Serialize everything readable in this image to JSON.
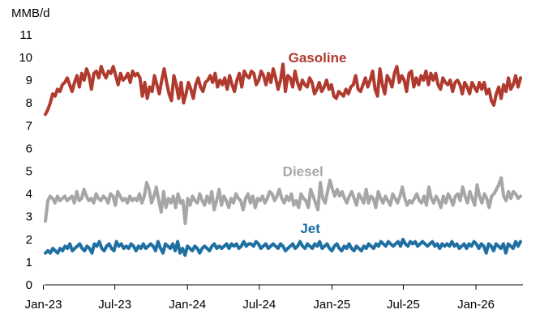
{
  "chart_data": {
    "type": "line",
    "title": "",
    "ylabel": "MMB/d",
    "xlabel": "",
    "ylim": [
      0,
      11
    ],
    "yticks": [
      "0",
      "1",
      "2",
      "3",
      "4",
      "5",
      "6",
      "7",
      "8",
      "9",
      "10",
      "11"
    ],
    "xticks": [
      "Jan-23",
      "Jul-23",
      "Jan-24",
      "Jul-24",
      "Jan-25",
      "Jul-25",
      "Jan-26"
    ],
    "x_range": [
      "2023-01-06",
      "2026-04-24"
    ],
    "x_frequency": "weekly",
    "grid": false,
    "legend": "none (series names written on the chart)",
    "series": [
      {
        "name": "Gasoline",
        "color": "#b03a2e",
        "values": [
          7.5,
          7.7,
          8.0,
          8.4,
          8.3,
          8.6,
          8.5,
          8.8,
          8.9,
          9.1,
          8.8,
          8.5,
          8.9,
          9.2,
          8.7,
          9.3,
          9.0,
          9.5,
          9.2,
          8.6,
          9.3,
          9.4,
          9.1,
          9.6,
          9.3,
          9.1,
          9.4,
          9.3,
          9.6,
          9.2,
          8.8,
          9.3,
          9.0,
          9.1,
          9.3,
          8.9,
          9.4,
          9.2,
          9.3,
          9.1,
          8.3,
          8.9,
          8.2,
          8.7,
          8.5,
          9.2,
          8.8,
          8.4,
          9.0,
          9.5,
          8.9,
          8.4,
          8.1,
          9.2,
          8.8,
          8.2,
          8.9,
          8.0,
          8.4,
          8.9,
          8.6,
          8.2,
          8.8,
          9.1,
          8.7,
          8.5,
          8.9,
          9.0,
          9.2,
          8.9,
          9.3,
          8.7,
          9.0,
          8.8,
          9.1,
          8.6,
          9.2,
          8.8,
          8.5,
          9.0,
          9.3,
          8.7,
          9.4,
          9.2,
          9.1,
          9.4,
          9.3,
          8.8,
          9.0,
          9.4,
          9.2,
          8.8,
          9.3,
          8.9,
          9.5,
          9.1,
          8.6,
          9.0,
          9.7,
          8.5,
          9.2,
          9.1,
          8.7,
          9.4,
          8.9,
          8.6,
          9.0,
          8.8,
          8.7,
          9.1,
          8.9,
          8.4,
          8.6,
          8.9,
          8.5,
          8.7,
          9.0,
          8.6,
          8.8,
          8.3,
          8.2,
          8.5,
          8.4,
          8.3,
          8.6,
          8.4,
          8.7,
          8.8,
          9.2,
          8.6,
          8.5,
          8.8,
          9.1,
          8.7,
          9.0,
          9.4,
          8.6,
          8.3,
          9.5,
          8.8,
          8.4,
          9.2,
          9.0,
          8.7,
          9.3,
          9.6,
          8.9,
          9.2,
          9.0,
          8.5,
          9.3,
          9.4,
          8.7,
          9.1,
          8.8,
          9.2,
          9.0,
          9.4,
          8.8,
          9.3,
          9.0,
          9.3,
          8.8,
          8.6,
          9.1,
          8.9,
          8.8,
          9.0,
          8.5,
          8.9,
          9.0,
          8.8,
          8.4,
          8.9,
          8.7,
          8.4,
          8.9,
          8.7,
          8.5,
          8.9,
          8.6,
          8.9,
          8.4,
          8.6,
          8.1,
          7.9,
          8.4,
          8.7,
          8.2,
          8.8,
          8.5,
          9.1,
          8.6,
          8.8,
          9.2,
          8.7,
          9.1
        ],
        "label_value_position": [
          2024.9,
          10.0
        ]
      },
      {
        "name": "Diesel",
        "color": "#a6a6a6",
        "values": [
          2.8,
          3.7,
          3.9,
          3.8,
          3.6,
          3.9,
          3.7,
          3.8,
          3.9,
          3.7,
          3.8,
          3.9,
          3.6,
          4.1,
          3.7,
          3.8,
          4.2,
          3.9,
          3.7,
          3.8,
          3.6,
          4.0,
          3.8,
          3.7,
          3.9,
          3.8,
          3.6,
          4.0,
          3.9,
          3.5,
          4.1,
          3.9,
          3.7,
          3.8,
          3.6,
          3.9,
          3.7,
          3.8,
          3.7,
          4.0,
          3.6,
          3.9,
          4.5,
          4.2,
          3.6,
          3.9,
          4.3,
          3.7,
          3.2,
          4.1,
          3.4,
          3.8,
          3.6,
          3.9,
          3.4,
          4.0,
          3.6,
          3.7,
          2.7,
          3.8,
          3.5,
          3.9,
          3.7,
          3.6,
          4.0,
          3.7,
          3.5,
          3.9,
          3.6,
          4.1,
          3.3,
          3.7,
          4.2,
          3.5,
          3.9,
          3.7,
          3.4,
          3.8,
          3.6,
          4.0,
          3.8,
          3.7,
          3.3,
          3.8,
          4.0,
          3.6,
          3.9,
          3.4,
          3.8,
          3.7,
          3.9,
          3.6,
          3.8,
          4.1,
          4.0,
          3.7,
          3.9,
          4.2,
          3.8,
          3.6,
          3.9,
          3.7,
          4.0,
          3.5,
          3.7,
          3.4,
          4.0,
          3.8,
          3.7,
          3.4,
          4.2,
          3.9,
          3.6,
          3.3,
          4.5,
          3.8,
          3.6,
          4.1,
          4.6,
          4.2,
          3.9,
          4.2,
          3.9,
          4.1,
          3.8,
          3.6,
          3.9,
          4.1,
          3.8,
          3.5,
          4.0,
          3.8,
          3.6,
          4.2,
          3.6,
          3.9,
          3.8,
          3.4,
          4.1,
          3.8,
          3.6,
          3.9,
          3.7,
          3.5,
          4.0,
          3.8,
          3.6,
          3.9,
          4.3,
          3.8,
          3.5,
          3.7,
          3.6,
          3.8,
          4.0,
          3.7,
          3.6,
          3.9,
          3.5,
          4.3,
          3.8,
          3.6,
          3.9,
          3.7,
          3.4,
          3.9,
          3.6,
          4.0,
          3.8,
          3.5,
          3.9,
          4.0,
          3.7,
          4.3,
          3.9,
          3.6,
          4.1,
          3.8,
          3.5,
          4.4,
          3.9,
          3.6,
          4.0,
          3.8,
          3.4,
          3.9,
          4.0,
          4.2,
          4.4,
          4.7,
          3.9,
          3.7,
          4.1,
          3.8,
          4.1,
          4.0,
          3.8,
          3.9
        ],
        "label_value_position": [
          2024.8,
          5.0
        ]
      },
      {
        "name": "Jet",
        "color": "#1f6fa3",
        "values": [
          1.4,
          1.5,
          1.4,
          1.6,
          1.5,
          1.4,
          1.6,
          1.5,
          1.7,
          1.6,
          1.8,
          1.5,
          1.6,
          1.7,
          1.8,
          1.6,
          1.5,
          1.7,
          1.6,
          1.4,
          1.8,
          1.7,
          1.9,
          1.6,
          1.5,
          1.7,
          1.8,
          1.6,
          1.5,
          1.9,
          1.7,
          1.8,
          1.6,
          1.7,
          1.6,
          1.8,
          1.7,
          1.5,
          1.7,
          1.6,
          1.8,
          1.6,
          1.7,
          1.8,
          1.7,
          1.5,
          1.9,
          1.6,
          1.4,
          1.8,
          1.7,
          1.6,
          1.8,
          1.5,
          1.9,
          1.4,
          1.6,
          1.3,
          1.7,
          1.6,
          1.5,
          1.7,
          1.6,
          1.4,
          1.6,
          1.7,
          1.6,
          1.5,
          1.7,
          1.8,
          1.6,
          1.7,
          1.6,
          1.7,
          1.8,
          1.6,
          1.8,
          1.7,
          1.8,
          1.6,
          1.7,
          1.9,
          1.7,
          1.8,
          1.8,
          1.7,
          1.9,
          1.8,
          1.6,
          1.7,
          1.8,
          1.6,
          1.7,
          1.8,
          1.7,
          1.6,
          1.8,
          1.7,
          1.5,
          1.6,
          1.7,
          1.8,
          1.6,
          1.7,
          1.9,
          1.7,
          1.6,
          1.8,
          1.7,
          1.6,
          1.8,
          1.7,
          1.9,
          1.6,
          1.7,
          1.8,
          1.6,
          1.5,
          1.7,
          1.8,
          1.6,
          1.5,
          1.7,
          1.6,
          1.8,
          1.6,
          1.5,
          1.7,
          1.6,
          1.5,
          1.7,
          1.6,
          1.8,
          1.7,
          1.6,
          1.8,
          1.7,
          1.9,
          1.8,
          1.7,
          1.9,
          1.8,
          1.7,
          1.8,
          1.9,
          1.7,
          2.0,
          1.8,
          1.7,
          1.9,
          1.8,
          1.9,
          1.7,
          1.8,
          1.9,
          1.8,
          1.7,
          1.8,
          1.9,
          1.7,
          1.8,
          1.6,
          1.8,
          1.7,
          1.8,
          1.7,
          1.9,
          1.7,
          1.8,
          1.6,
          1.7,
          1.8,
          1.6,
          1.8,
          1.7,
          1.9,
          1.8,
          1.6,
          1.8,
          1.7,
          1.4,
          1.8,
          1.7,
          1.5,
          1.8,
          1.7,
          1.6,
          1.8,
          1.4,
          1.8,
          1.7,
          1.6,
          1.9,
          1.7,
          1.9
        ],
        "label_value_position": [
          2024.85,
          2.5
        ]
      }
    ]
  }
}
